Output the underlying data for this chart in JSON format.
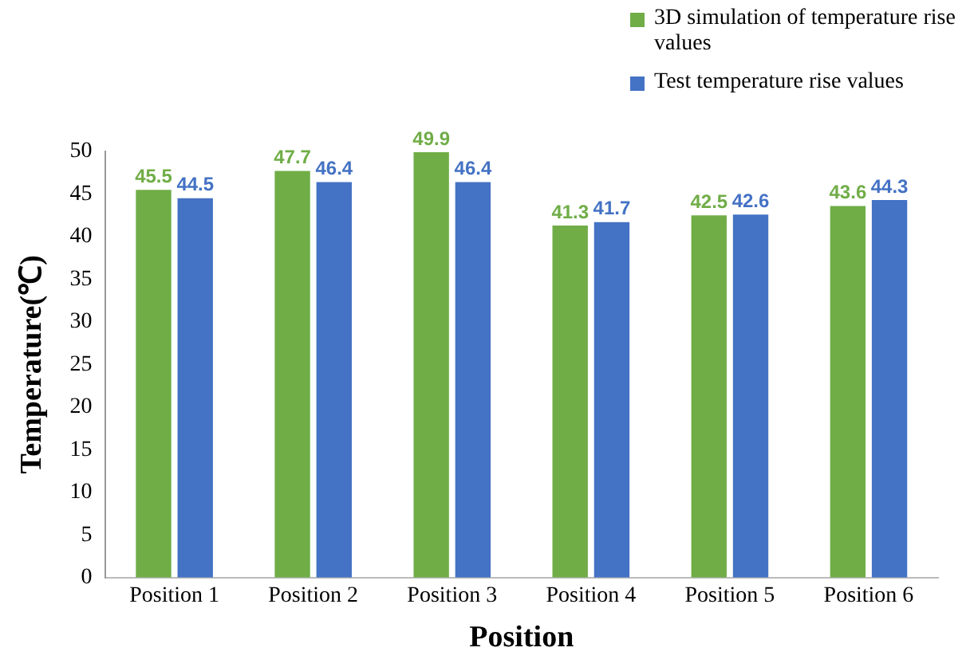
{
  "chart_data": {
    "type": "bar",
    "xlabel": "Position",
    "ylabel": "Temperature(℃)",
    "categories": [
      "Position 1",
      "Position 2",
      "Position 3",
      "Position 4",
      "Position 5",
      "Position 6"
    ],
    "series": [
      {
        "name": "3D simulation of temperature rise values",
        "color": "#70ad47",
        "values": [
          45.5,
          47.7,
          49.9,
          41.3,
          42.5,
          43.6
        ]
      },
      {
        "name": "Test temperature rise values",
        "color": "#4472c4",
        "values": [
          44.5,
          46.4,
          46.4,
          41.7,
          42.6,
          44.3
        ]
      }
    ],
    "ylim": [
      0,
      50
    ],
    "yticks": [
      0,
      5,
      10,
      15,
      20,
      25,
      30,
      35,
      40,
      45,
      50
    ],
    "grid": false,
    "legend": "top right",
    "data_labels": true
  }
}
